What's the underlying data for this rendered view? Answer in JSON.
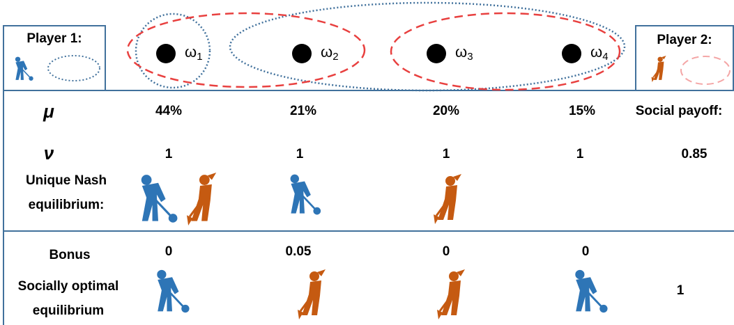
{
  "players": [
    {
      "label": "Player 1:"
    },
    {
      "label": "Player 2:"
    }
  ],
  "states": [
    {
      "symbol": "ω",
      "index": "1"
    },
    {
      "symbol": "ω",
      "index": "2"
    },
    {
      "symbol": "ω",
      "index": "3"
    },
    {
      "symbol": "ω",
      "index": "4"
    }
  ],
  "rows": {
    "mu": {
      "label": "μ",
      "values": [
        "44%",
        "21%",
        "20%",
        "15%"
      ],
      "extra": "Social payoff:"
    },
    "nu": {
      "label": "ν",
      "values": [
        "1",
        "1",
        "1",
        "1"
      ],
      "extra": "0.85"
    },
    "nash": {
      "label_lines": [
        "Unique Nash",
        "equilibrium:"
      ]
    },
    "bonus": {
      "label": "Bonus",
      "values": [
        "0",
        "0.05",
        "0",
        "0"
      ]
    },
    "optimal": {
      "label_lines": [
        "Socially optimal",
        "equilibrium"
      ],
      "extra": "1"
    }
  }
}
